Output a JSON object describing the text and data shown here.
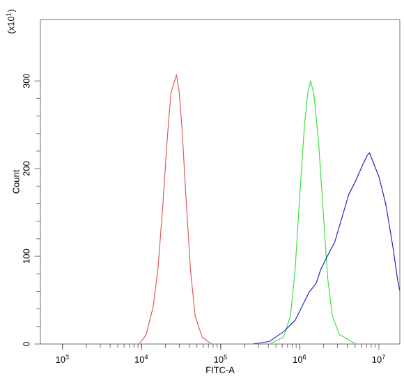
{
  "chart_data": {
    "type": "line",
    "xlabel": "FITC-A",
    "ylabel": "Count",
    "annotations": [
      "(x10$^{1}$)"
    ],
    "log": "x",
    "xlim": [
      525,
      18400000
    ],
    "ylim": [
      0,
      370
    ],
    "xticks": [
      {
        "value": 1000,
        "label": "10$^{3}$"
      },
      {
        "value": 10000,
        "label": "10$^{4}$"
      },
      {
        "value": 100000,
        "label": "10$^{5}$"
      },
      {
        "value": 1000000,
        "label": "10$^{6}$"
      },
      {
        "value": 10000000,
        "label": "10$^{7}$"
      }
    ],
    "yticks": [
      0,
      100,
      200,
      300
    ],
    "grid": false,
    "marker": "none",
    "line_style": "solid",
    "series": [
      {
        "color": "#e05a5a",
        "x": [
          9346,
          11454,
          14033,
          16068,
          18393,
          21060,
          23480,
          25460,
          27620,
          29960,
          32500,
          36230,
          41460,
          47480,
          58180,
          76290
        ],
        "values": [
          0,
          11,
          43,
          85,
          154,
          233,
          286,
          297,
          307,
          286,
          244,
          170,
          85,
          32,
          8,
          0
        ]
      },
      {
        "color": "#3ee03e",
        "x": [
          414600,
          622600,
          762800,
          873500,
          1000000,
          1145000,
          1259000,
          1366000,
          1502000,
          1719000,
          1968000,
          2254000,
          2581000,
          3162000,
          5080000
        ],
        "values": [
          0,
          8,
          32,
          85,
          170,
          249,
          286,
          300,
          286,
          233,
          154,
          75,
          32,
          11,
          0
        ]
      },
      {
        "color": "#2424c0",
        "x": [
          258100,
          414600,
          622600,
          873500,
          1070000,
          1311000,
          1607000,
          1839000,
          2254000,
          2762000,
          3383000,
          4146000,
          5080000,
          6225000,
          7130000,
          7630000,
          8735000,
          10000000,
          12250000,
          15020000,
          17190000,
          18400000
        ],
        "values": [
          0,
          3,
          14,
          27,
          43,
          59,
          69,
          85,
          101,
          116,
          143,
          170,
          186,
          204,
          215,
          218,
          204,
          191,
          159,
          111,
          74,
          61
        ]
      }
    ]
  }
}
